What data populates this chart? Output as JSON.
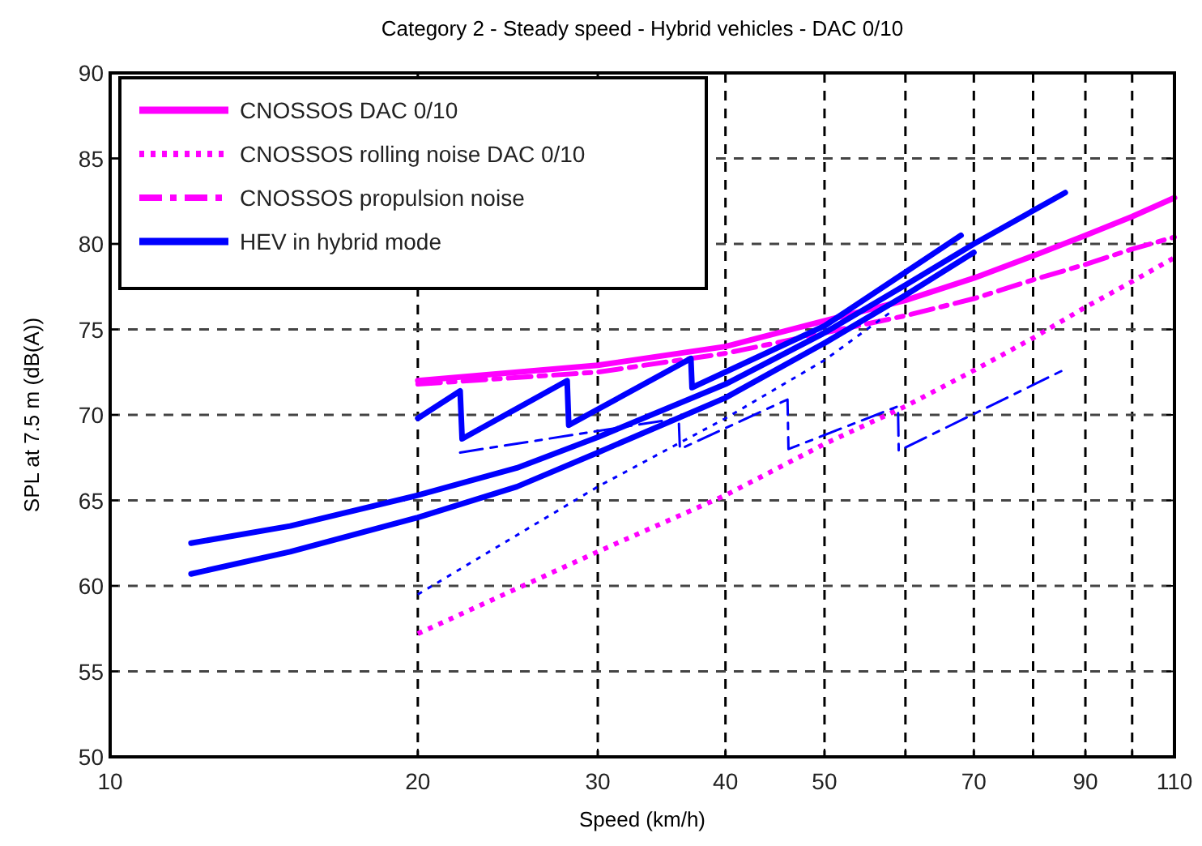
{
  "chart_data": {
    "type": "line",
    "title": "Category 2 - Steady speed - Hybrid vehicles - DAC 0/10",
    "xlabel": "Speed (km/h)",
    "ylabel": "SPL at 7.5 m (dB(A))",
    "log": "x",
    "xlim": [
      10,
      110
    ],
    "xticks": [
      10,
      20,
      30,
      40,
      50,
      {
        "value": 60,
        "label": null
      },
      70,
      {
        "value": 80,
        "label": null
      },
      90,
      {
        "value": 100,
        "label": null
      },
      110
    ],
    "ylim": [
      50,
      90
    ],
    "yticks": [
      50,
      55,
      60,
      65,
      70,
      75,
      80,
      85,
      90
    ],
    "grid": true,
    "legend": "top left",
    "series": [
      {
        "name": "CNOSSOS DAC 0/10",
        "color": "#ff00ff",
        "line_style": "solid",
        "x": [
          20,
          30,
          40,
          50,
          60,
          70,
          80,
          90,
          100,
          110
        ],
        "values": [
          72,
          72.9,
          74,
          75.5,
          76.7,
          78,
          79.3,
          80.5,
          81.6,
          82.7
        ]
      },
      {
        "name": "CNOSSOS rolling noise DAC 0/10",
        "color": "#ff00ff",
        "line_style": "dotted",
        "x": [
          20,
          30,
          40,
          50,
          60,
          70,
          80,
          90,
          100,
          110
        ],
        "values": [
          57.2,
          62,
          65.3,
          68.3,
          70.5,
          72.6,
          74.5,
          76.3,
          77.8,
          79.2
        ]
      },
      {
        "name": "CNOSSOS propulsion noise",
        "color": "#ff00ff",
        "line_style": "dashed",
        "x": [
          20,
          30,
          40,
          50,
          60,
          70,
          80,
          90,
          100,
          110
        ],
        "values": [
          71.8,
          72.5,
          73.6,
          74.8,
          75.8,
          76.8,
          77.9,
          78.8,
          79.7,
          80.4
        ]
      },
      {
        "name": "HEV in hybrid mode",
        "color": "#0000ff",
        "line_style": "solid",
        "x": [
          12,
          15,
          20,
          25,
          30,
          40,
          50,
          60,
          70,
          86
        ],
        "values": [
          62.5,
          63.5,
          65.3,
          66.9,
          68.7,
          71.8,
          74.8,
          77.6,
          80,
          83
        ]
      },
      {
        "color": "#0000ff",
        "line_style": "solid",
        "x": [
          12,
          15,
          20,
          25,
          30,
          40,
          50,
          60,
          70
        ],
        "values": [
          60.7,
          62,
          64,
          65.8,
          67.8,
          71,
          74.2,
          77,
          79.5
        ]
      },
      {
        "color": "#0000ff",
        "line_style": "solid",
        "x": [
          20,
          22,
          22.1,
          28,
          28.1,
          37,
          37.1,
          50,
          68
        ],
        "values": [
          69.8,
          71.4,
          68.6,
          72,
          69.4,
          73.3,
          71.6,
          75.2,
          80.5
        ]
      },
      {
        "color": "#0000ff",
        "line_style": "dotted",
        "x": [
          20,
          30,
          40,
          50,
          58
        ],
        "values": [
          59.5,
          65.8,
          69.8,
          73.2,
          76
        ]
      },
      {
        "color": "#0000ff",
        "line_style": "dashed",
        "x": [
          22,
          36,
          36.1,
          46,
          46.1,
          59,
          59.1,
          85.5
        ],
        "values": [
          67.8,
          69.8,
          68,
          70.9,
          68,
          70.5,
          67.9,
          72.6
        ]
      }
    ]
  }
}
